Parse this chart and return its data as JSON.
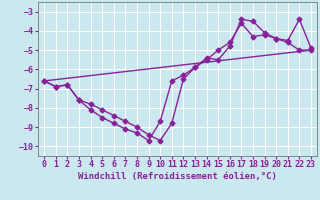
{
  "background_color": "#cbe8ee",
  "grid_color": "#ffffff",
  "line_color": "#882299",
  "marker": "D",
  "marker_size": 2.5,
  "line_width": 1.0,
  "xlabel": "Windchill (Refroidissement éolien,°C)",
  "xlabel_fontsize": 6.5,
  "tick_fontsize": 6,
  "xlim": [
    -0.5,
    23.5
  ],
  "ylim": [
    -10.5,
    -2.5
  ],
  "yticks": [
    -10,
    -9,
    -8,
    -7,
    -6,
    -5,
    -4,
    -3
  ],
  "xticks": [
    0,
    1,
    2,
    3,
    4,
    5,
    6,
    7,
    8,
    9,
    10,
    11,
    12,
    13,
    14,
    15,
    16,
    17,
    18,
    19,
    20,
    21,
    22,
    23
  ],
  "line1_x": [
    0,
    1,
    2,
    3,
    4,
    5,
    6,
    7,
    8,
    9,
    10,
    11,
    12,
    13,
    14,
    15,
    16,
    17,
    18,
    19,
    20,
    21,
    22,
    23
  ],
  "line1_y": [
    -6.6,
    -6.9,
    -6.8,
    -7.6,
    -7.8,
    -8.1,
    -8.4,
    -8.7,
    -9.0,
    -9.4,
    -9.7,
    -8.8,
    -6.5,
    -5.9,
    -5.4,
    -5.5,
    -4.8,
    -3.4,
    -3.5,
    -4.1,
    -4.4,
    -4.5,
    -3.4,
    -4.9
  ],
  "line2_x": [
    0,
    1,
    2,
    3,
    4,
    5,
    6,
    7,
    8,
    9,
    10,
    11,
    12,
    13,
    14,
    15,
    16,
    17,
    18,
    19,
    20,
    21,
    22,
    23
  ],
  "line2_y": [
    -6.6,
    -6.9,
    -6.8,
    -7.6,
    -8.1,
    -8.5,
    -8.8,
    -9.1,
    -9.3,
    -9.7,
    -8.7,
    -6.6,
    -6.3,
    -5.9,
    -5.5,
    -5.0,
    -4.6,
    -3.6,
    -4.3,
    -4.2,
    -4.4,
    -4.6,
    -5.0,
    -5.0
  ],
  "line3_x": [
    0,
    23
  ],
  "line3_y": [
    -6.6,
    -5.0
  ]
}
